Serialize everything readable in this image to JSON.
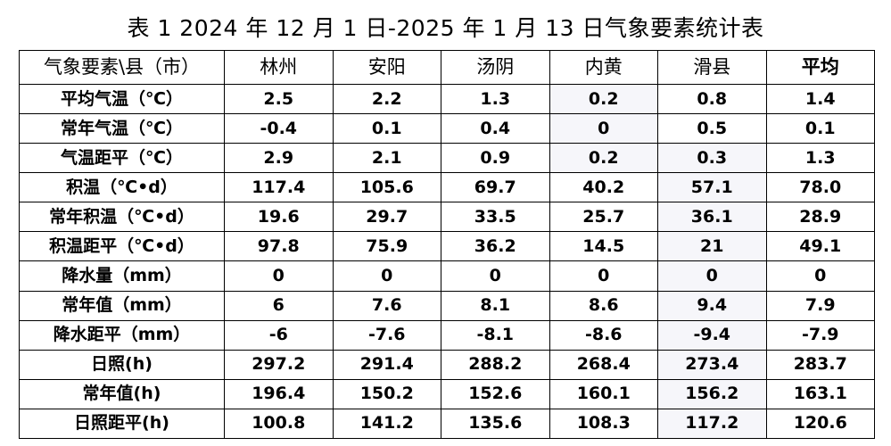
{
  "title": "表 1    2024 年 12 月 1 日-2025 年 1 月 13 日气象要素统计表",
  "table": {
    "corner_header": "气象要素\\县（市）",
    "columns": [
      "林州",
      "安阳",
      "汤阴",
      "内黄",
      "滑县",
      "平均"
    ],
    "rows": [
      {
        "label": "平均气温（℃）",
        "values": [
          "2.5",
          "2.2",
          "1.3",
          "0.2",
          "0.8",
          "1.4"
        ]
      },
      {
        "label": "常年气温（℃）",
        "values": [
          "-0.4",
          "0.1",
          "0.4",
          "0",
          "0.5",
          "0.1"
        ]
      },
      {
        "label": "气温距平（℃）",
        "values": [
          "2.9",
          "2.1",
          "0.9",
          "0.2",
          "0.3",
          "1.3"
        ]
      },
      {
        "label": "积温（℃•d）",
        "values": [
          "117.4",
          "105.6",
          "69.7",
          "40.2",
          "57.1",
          "78.0"
        ]
      },
      {
        "label": "常年积温（℃•d）",
        "values": [
          "19.6",
          "29.7",
          "33.5",
          "25.7",
          "36.1",
          "28.9"
        ]
      },
      {
        "label": "积温距平（℃•d）",
        "values": [
          "97.8",
          "75.9",
          "36.2",
          "14.5",
          "21",
          "49.1"
        ]
      },
      {
        "label": "降水量（mm）",
        "values": [
          "0",
          "0",
          "0",
          "0",
          "0",
          "0"
        ]
      },
      {
        "label": "常年值（mm）",
        "values": [
          "6",
          "7.6",
          "8.1",
          "8.6",
          "9.4",
          "7.9"
        ]
      },
      {
        "label": "降水距平（mm）",
        "values": [
          "-6",
          "-7.6",
          "-8.1",
          "-8.6",
          "-9.4",
          "-7.9"
        ]
      },
      {
        "label": "日照(h)",
        "values": [
          "297.2",
          "291.4",
          "288.2",
          "268.4",
          "273.4",
          "283.7"
        ]
      },
      {
        "label": "常年值(h)",
        "values": [
          "196.4",
          "150.2",
          "152.6",
          "160.1",
          "156.2",
          "163.1"
        ]
      },
      {
        "label": "日照距平(h)",
        "values": [
          "100.8",
          "141.2",
          "135.6",
          "108.3",
          "117.2",
          "120.6"
        ]
      }
    ]
  }
}
